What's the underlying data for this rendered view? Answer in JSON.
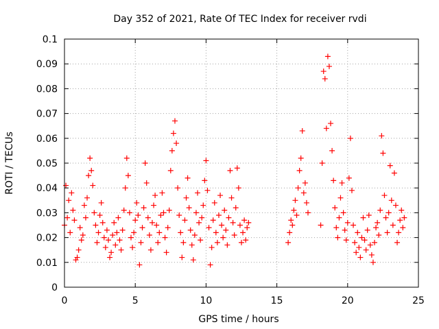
{
  "chart_data": {
    "type": "scatter",
    "title": "Day 352 of 2021, Rate Of TEC Index for receiver rvdi",
    "xlabel": "GPS time / hours",
    "ylabel": "ROTI / TECUs",
    "xlim": [
      0,
      25
    ],
    "ylim": [
      0,
      0.1
    ],
    "xticks": [
      "0",
      "5",
      "10",
      "15",
      "20",
      "25"
    ],
    "yticks": [
      "0",
      "0.01",
      "0.02",
      "0.03",
      "0.04",
      "0.05",
      "0.06",
      "0.07",
      "0.08",
      "0.09",
      "0.1"
    ],
    "grid": true,
    "marker": "+",
    "color": "#ff0000",
    "points": [
      [
        0.0,
        0.025
      ],
      [
        0.1,
        0.041
      ],
      [
        0.2,
        0.028
      ],
      [
        0.3,
        0.035
      ],
      [
        0.4,
        0.022
      ],
      [
        0.5,
        0.038
      ],
      [
        0.6,
        0.031
      ],
      [
        0.7,
        0.027
      ],
      [
        0.8,
        0.011
      ],
      [
        0.9,
        0.012
      ],
      [
        1.0,
        0.015
      ],
      [
        1.1,
        0.024
      ],
      [
        1.2,
        0.019
      ],
      [
        1.3,
        0.021
      ],
      [
        1.4,
        0.033
      ],
      [
        1.5,
        0.028
      ],
      [
        1.6,
        0.036
      ],
      [
        1.7,
        0.045
      ],
      [
        1.8,
        0.052
      ],
      [
        1.9,
        0.047
      ],
      [
        2.0,
        0.041
      ],
      [
        2.1,
        0.03
      ],
      [
        2.2,
        0.025
      ],
      [
        2.3,
        0.018
      ],
      [
        2.4,
        0.022
      ],
      [
        2.5,
        0.029
      ],
      [
        2.6,
        0.034
      ],
      [
        2.7,
        0.026
      ],
      [
        2.8,
        0.02
      ],
      [
        2.9,
        0.016
      ],
      [
        3.0,
        0.023
      ],
      [
        3.1,
        0.019
      ],
      [
        3.2,
        0.012
      ],
      [
        3.3,
        0.014
      ],
      [
        3.4,
        0.021
      ],
      [
        3.5,
        0.026
      ],
      [
        3.6,
        0.017
      ],
      [
        3.7,
        0.022
      ],
      [
        3.8,
        0.028
      ],
      [
        3.9,
        0.019
      ],
      [
        4.0,
        0.015
      ],
      [
        4.1,
        0.023
      ],
      [
        4.2,
        0.031
      ],
      [
        4.3,
        0.04
      ],
      [
        4.4,
        0.052
      ],
      [
        4.5,
        0.045
      ],
      [
        4.6,
        0.03
      ],
      [
        4.7,
        0.02
      ],
      [
        4.8,
        0.016
      ],
      [
        4.9,
        0.022
      ],
      [
        5.0,
        0.027
      ],
      [
        5.1,
        0.034
      ],
      [
        5.2,
        0.029
      ],
      [
        5.3,
        0.009
      ],
      [
        5.4,
        0.018
      ],
      [
        5.5,
        0.024
      ],
      [
        5.6,
        0.032
      ],
      [
        5.7,
        0.05
      ],
      [
        5.8,
        0.042
      ],
      [
        5.9,
        0.028
      ],
      [
        6.0,
        0.021
      ],
      [
        6.1,
        0.015
      ],
      [
        6.2,
        0.026
      ],
      [
        6.3,
        0.033
      ],
      [
        6.4,
        0.037
      ],
      [
        6.5,
        0.025
      ],
      [
        6.6,
        0.018
      ],
      [
        6.7,
        0.022
      ],
      [
        6.8,
        0.029
      ],
      [
        6.9,
        0.038
      ],
      [
        7.0,
        0.03
      ],
      [
        7.1,
        0.02
      ],
      [
        7.2,
        0.014
      ],
      [
        7.3,
        0.024
      ],
      [
        7.4,
        0.031
      ],
      [
        7.5,
        0.047
      ],
      [
        7.6,
        0.055
      ],
      [
        7.7,
        0.062
      ],
      [
        7.8,
        0.067
      ],
      [
        7.9,
        0.058
      ],
      [
        8.0,
        0.04
      ],
      [
        8.1,
        0.029
      ],
      [
        8.2,
        0.022
      ],
      [
        8.3,
        0.012
      ],
      [
        8.4,
        0.018
      ],
      [
        8.5,
        0.027
      ],
      [
        8.6,
        0.036
      ],
      [
        8.7,
        0.044
      ],
      [
        8.8,
        0.032
      ],
      [
        8.9,
        0.023
      ],
      [
        9.0,
        0.017
      ],
      [
        9.1,
        0.011
      ],
      [
        9.2,
        0.021
      ],
      [
        9.3,
        0.03
      ],
      [
        9.4,
        0.038
      ],
      [
        9.5,
        0.026
      ],
      [
        9.6,
        0.019
      ],
      [
        9.7,
        0.028
      ],
      [
        9.8,
        0.033
      ],
      [
        9.9,
        0.043
      ],
      [
        10.0,
        0.051
      ],
      [
        10.1,
        0.039
      ],
      [
        10.2,
        0.024
      ],
      [
        10.3,
        0.009
      ],
      [
        10.4,
        0.016
      ],
      [
        10.5,
        0.027
      ],
      [
        10.6,
        0.034
      ],
      [
        10.7,
        0.022
      ],
      [
        10.8,
        0.018
      ],
      [
        10.9,
        0.029
      ],
      [
        11.0,
        0.037
      ],
      [
        11.1,
        0.025
      ],
      [
        11.2,
        0.02
      ],
      [
        11.3,
        0.031
      ],
      [
        11.4,
        0.023
      ],
      [
        11.5,
        0.017
      ],
      [
        11.6,
        0.028
      ],
      [
        11.7,
        0.047
      ],
      [
        11.8,
        0.036
      ],
      [
        11.9,
        0.026
      ],
      [
        12.0,
        0.021
      ],
      [
        12.1,
        0.032
      ],
      [
        12.2,
        0.048
      ],
      [
        12.3,
        0.04
      ],
      [
        12.4,
        0.025
      ],
      [
        12.5,
        0.018
      ],
      [
        12.6,
        0.022
      ],
      [
        12.7,
        0.027
      ],
      [
        12.8,
        0.019
      ],
      [
        12.9,
        0.024
      ],
      [
        13.0,
        0.026
      ],
      [
        15.8,
        0.018
      ],
      [
        15.9,
        0.022
      ],
      [
        16.0,
        0.027
      ],
      [
        16.1,
        0.025
      ],
      [
        16.2,
        0.031
      ],
      [
        16.3,
        0.035
      ],
      [
        16.4,
        0.029
      ],
      [
        16.5,
        0.04
      ],
      [
        16.6,
        0.047
      ],
      [
        16.7,
        0.052
      ],
      [
        16.8,
        0.063
      ],
      [
        16.9,
        0.038
      ],
      [
        17.0,
        0.042
      ],
      [
        17.1,
        0.034
      ],
      [
        17.2,
        0.03
      ],
      [
        18.1,
        0.025
      ],
      [
        18.2,
        0.05
      ],
      [
        18.3,
        0.087
      ],
      [
        18.4,
        0.084
      ],
      [
        18.5,
        0.064
      ],
      [
        18.6,
        0.093
      ],
      [
        18.7,
        0.089
      ],
      [
        18.8,
        0.066
      ],
      [
        18.9,
        0.055
      ],
      [
        19.0,
        0.043
      ],
      [
        19.1,
        0.032
      ],
      [
        19.2,
        0.024
      ],
      [
        19.3,
        0.02
      ],
      [
        19.4,
        0.028
      ],
      [
        19.5,
        0.036
      ],
      [
        19.6,
        0.042
      ],
      [
        19.7,
        0.03
      ],
      [
        19.8,
        0.023
      ],
      [
        19.9,
        0.019
      ],
      [
        20.0,
        0.026
      ],
      [
        20.1,
        0.044
      ],
      [
        20.2,
        0.06
      ],
      [
        20.3,
        0.039
      ],
      [
        20.4,
        0.025
      ],
      [
        20.5,
        0.018
      ],
      [
        20.6,
        0.014
      ],
      [
        20.7,
        0.022
      ],
      [
        20.8,
        0.016
      ],
      [
        20.9,
        0.012
      ],
      [
        21.0,
        0.02
      ],
      [
        21.1,
        0.028
      ],
      [
        21.2,
        0.019
      ],
      [
        21.3,
        0.015
      ],
      [
        21.4,
        0.023
      ],
      [
        21.5,
        0.029
      ],
      [
        21.6,
        0.017
      ],
      [
        21.7,
        0.013
      ],
      [
        21.8,
        0.01
      ],
      [
        21.9,
        0.018
      ],
      [
        22.0,
        0.024
      ],
      [
        22.1,
        0.026
      ],
      [
        22.2,
        0.021
      ],
      [
        22.3,
        0.031
      ],
      [
        22.4,
        0.061
      ],
      [
        22.5,
        0.054
      ],
      [
        22.6,
        0.037
      ],
      [
        22.7,
        0.028
      ],
      [
        22.8,
        0.022
      ],
      [
        22.9,
        0.03
      ],
      [
        23.0,
        0.049
      ],
      [
        23.1,
        0.035
      ],
      [
        23.2,
        0.025
      ],
      [
        23.3,
        0.046
      ],
      [
        23.4,
        0.033
      ],
      [
        23.5,
        0.018
      ],
      [
        23.6,
        0.022
      ],
      [
        23.7,
        0.027
      ],
      [
        23.8,
        0.031
      ],
      [
        23.9,
        0.024
      ],
      [
        24.0,
        0.028
      ]
    ]
  }
}
